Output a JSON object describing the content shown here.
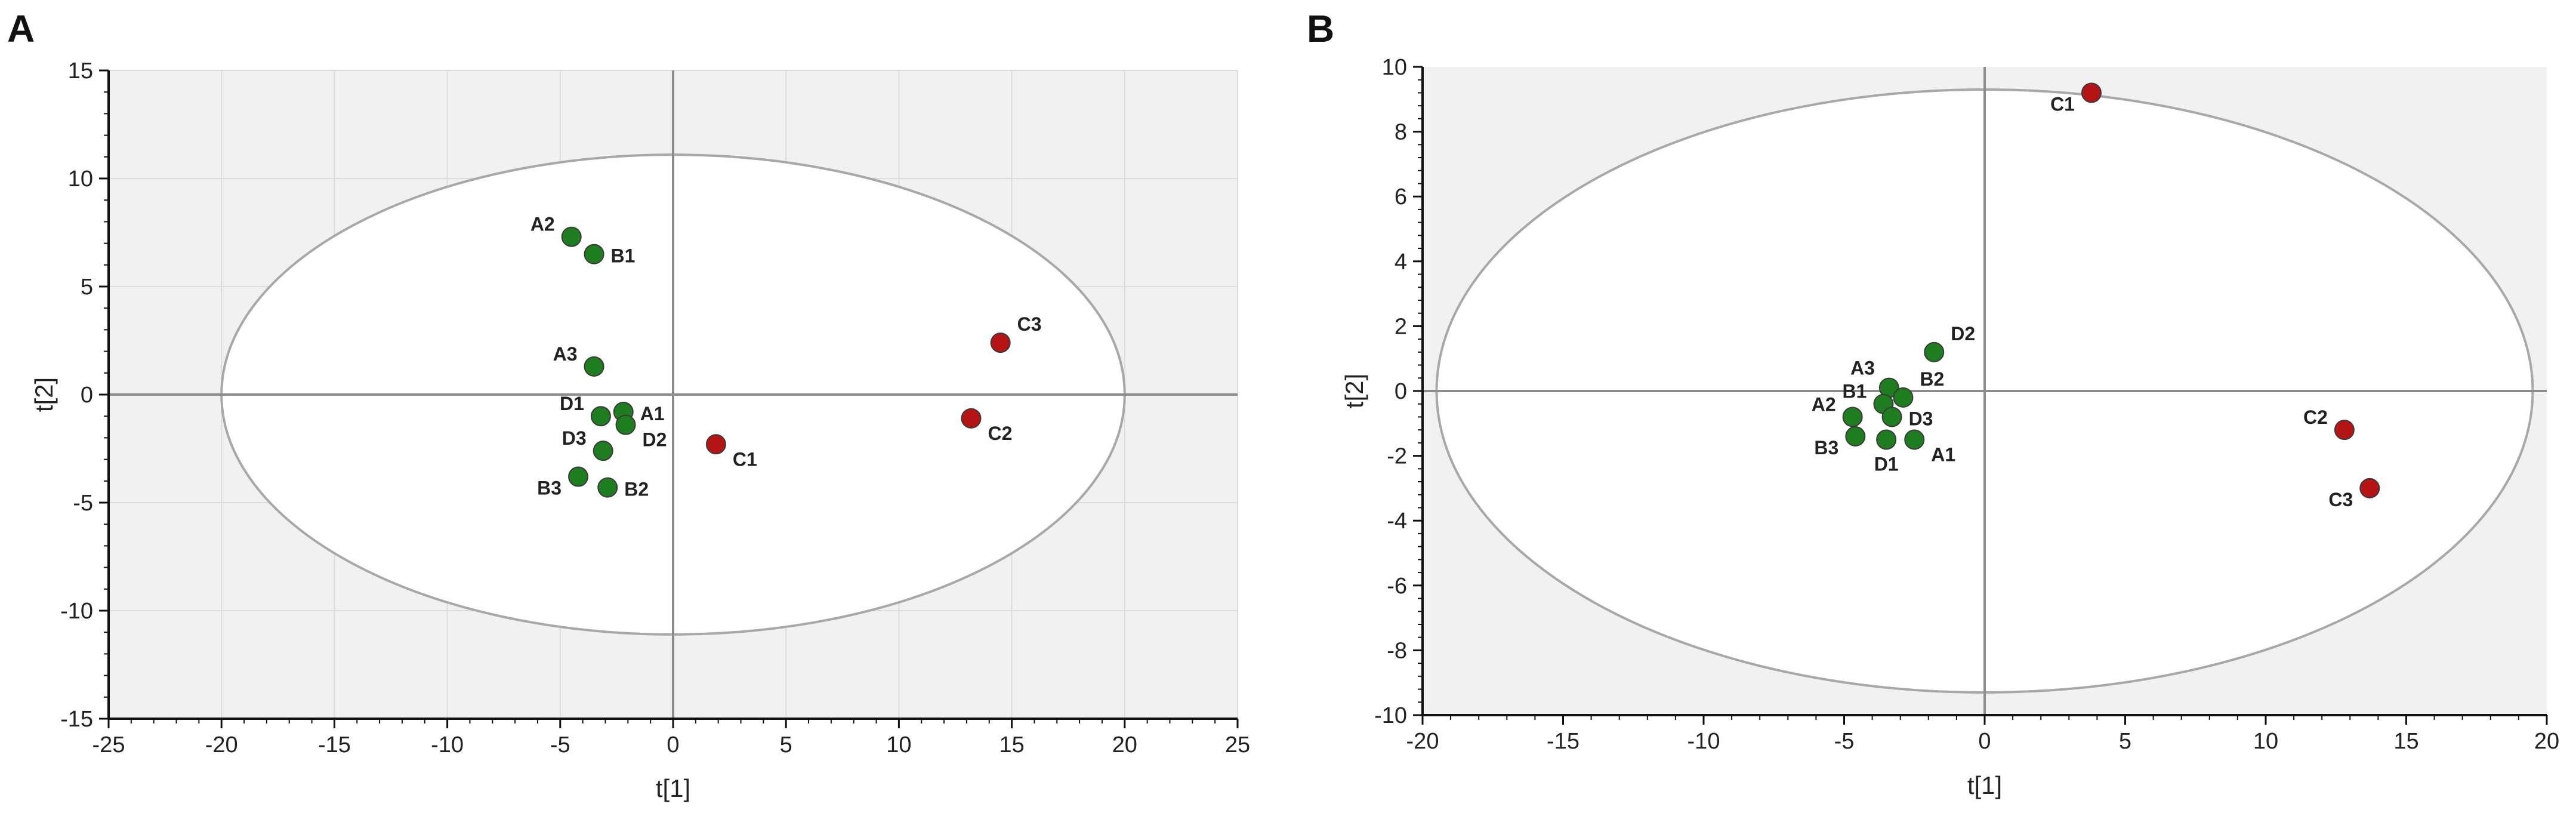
{
  "chart_data": [
    {
      "panel": "A",
      "type": "scatter",
      "xlabel": "t[1]",
      "ylabel": "t[2]",
      "xlim": [
        -25,
        25
      ],
      "ylim": [
        -15,
        15
      ],
      "xticks": [
        -25,
        -20,
        -15,
        -10,
        -5,
        0,
        5,
        10,
        15,
        20,
        25
      ],
      "yticks": [
        -15,
        -10,
        -5,
        0,
        5,
        10,
        15
      ],
      "grid": true,
      "ellipse": {
        "rx": 20,
        "ry": 11.1
      },
      "colors": {
        "group_green": "#1e7d1e",
        "group_red": "#b41414"
      },
      "points": [
        {
          "label": "A2",
          "x": -4.5,
          "y": 7.3,
          "color": "group_green",
          "pos": "left"
        },
        {
          "label": "B1",
          "x": -3.5,
          "y": 6.5,
          "color": "group_green",
          "pos": "right"
        },
        {
          "label": "A3",
          "x": -3.5,
          "y": 1.3,
          "color": "group_green",
          "pos": "left"
        },
        {
          "label": "A1",
          "x": -2.2,
          "y": -0.8,
          "color": "group_green",
          "pos": "right"
        },
        {
          "label": "D1",
          "x": -3.2,
          "y": -1.0,
          "color": "group_green",
          "pos": "left"
        },
        {
          "label": "D2",
          "x": -2.1,
          "y": -1.4,
          "color": "group_green",
          "pos": "right-below"
        },
        {
          "label": "D3",
          "x": -3.1,
          "y": -2.6,
          "color": "group_green",
          "pos": "left"
        },
        {
          "label": "B3",
          "x": -4.2,
          "y": -3.8,
          "color": "group_green",
          "pos": "left-below"
        },
        {
          "label": "B2",
          "x": -2.9,
          "y": -4.3,
          "color": "group_green",
          "pos": "right"
        },
        {
          "label": "C1",
          "x": 1.9,
          "y": -2.3,
          "color": "group_red",
          "pos": "right-below"
        },
        {
          "label": "C2",
          "x": 13.2,
          "y": -1.1,
          "color": "group_red",
          "pos": "right-below"
        },
        {
          "label": "C3",
          "x": 14.5,
          "y": 2.4,
          "color": "group_red",
          "pos": "right-above"
        }
      ]
    },
    {
      "panel": "B",
      "type": "scatter",
      "xlabel": "t[1]",
      "ylabel": "t[2]",
      "xlim": [
        -20,
        20
      ],
      "ylim": [
        -10,
        10
      ],
      "xticks": [
        -20,
        -15,
        -10,
        -5,
        0,
        5,
        10,
        15,
        20
      ],
      "yticks": [
        -10,
        -8,
        -6,
        -4,
        -2,
        0,
        2,
        4,
        6,
        8,
        10
      ],
      "grid": false,
      "ellipse": {
        "rx": 19.5,
        "ry": 9.3
      },
      "colors": {
        "group_green": "#1e7d1e",
        "group_red": "#b41414"
      },
      "points": [
        {
          "label": "C1",
          "x": 3.8,
          "y": 9.2,
          "color": "group_red",
          "pos": "left-below"
        },
        {
          "label": "D2",
          "x": -1.8,
          "y": 1.2,
          "color": "group_green",
          "pos": "right-above"
        },
        {
          "label": "A3",
          "x": -3.4,
          "y": 0.1,
          "color": "group_green",
          "pos": "left-above"
        },
        {
          "label": "B2",
          "x": -2.9,
          "y": -0.2,
          "color": "group_green",
          "pos": "right-above"
        },
        {
          "label": "B1",
          "x": -3.6,
          "y": -0.4,
          "color": "group_green",
          "pos": "left"
        },
        {
          "label": "A2",
          "x": -4.7,
          "y": -0.8,
          "color": "group_green",
          "pos": "left"
        },
        {
          "label": "D3",
          "x": -3.3,
          "y": -0.8,
          "color": "group_green",
          "pos": "right"
        },
        {
          "label": "B3",
          "x": -4.6,
          "y": -1.4,
          "color": "group_green",
          "pos": "left-below"
        },
        {
          "label": "D1",
          "x": -3.5,
          "y": -1.5,
          "color": "group_green",
          "pos": "below"
        },
        {
          "label": "A1",
          "x": -2.5,
          "y": -1.5,
          "color": "group_green",
          "pos": "right-below"
        },
        {
          "label": "C2",
          "x": 12.8,
          "y": -1.2,
          "color": "group_red",
          "pos": "left"
        },
        {
          "label": "C3",
          "x": 13.7,
          "y": -3.0,
          "color": "group_red",
          "pos": "left-below"
        }
      ]
    }
  ]
}
